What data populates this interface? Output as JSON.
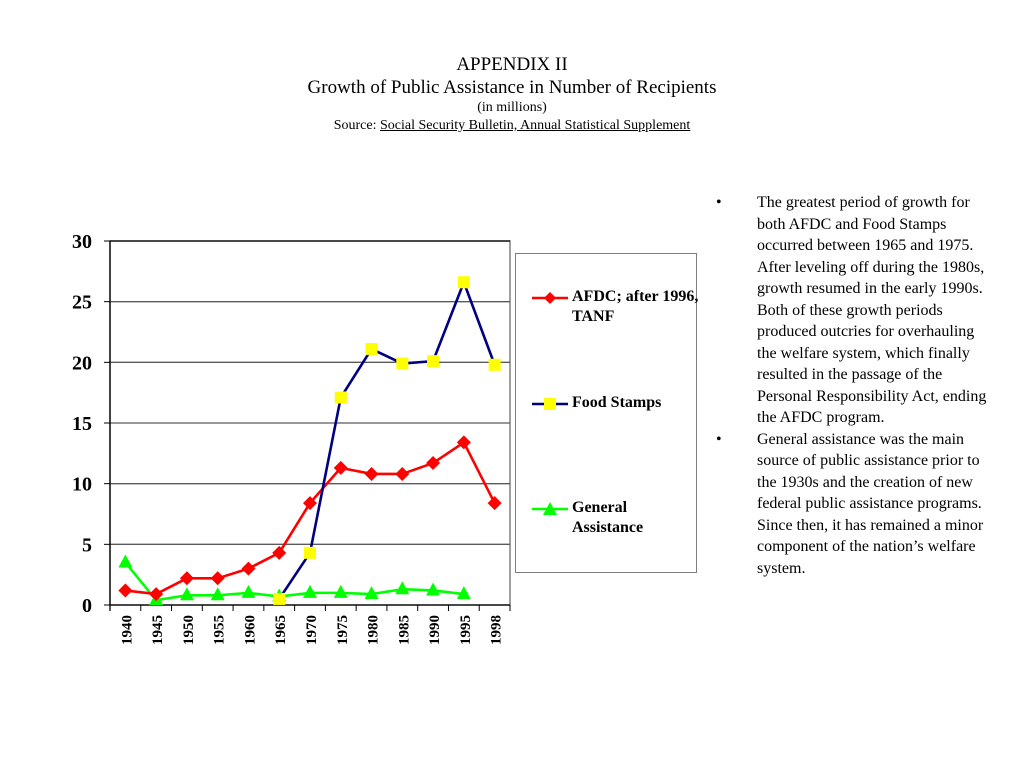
{
  "header": {
    "title": "APPENDIX II",
    "subtitle": "Growth of Public Assistance in Number of Recipients",
    "units": "(in millions)",
    "source_prefix": "Source: ",
    "source_text": "Social Security Bulletin, Annual Statistical Supplement"
  },
  "chart_data": {
    "type": "line",
    "title": "Growth of Public Assistance in Number of Recipients",
    "xlabel": "",
    "ylabel": "",
    "categories": [
      "1940",
      "1945",
      "1950",
      "1955",
      "1960",
      "1965",
      "1970",
      "1975",
      "1980",
      "1985",
      "1990",
      "1995",
      "1998"
    ],
    "ylim": [
      0,
      30
    ],
    "yticks": [
      0,
      5,
      10,
      15,
      20,
      25,
      30
    ],
    "grid": true,
    "legend_position": "right",
    "series": [
      {
        "name": "AFDC; after 1996, TANF",
        "line_color": "#ff0000",
        "marker": "diamond",
        "marker_color": "#ff0000",
        "values": [
          1.2,
          0.9,
          2.2,
          2.2,
          3.0,
          4.3,
          8.4,
          11.3,
          10.8,
          10.8,
          11.7,
          13.4,
          8.4
        ]
      },
      {
        "name": "Food Stamps",
        "line_color": "#000080",
        "marker": "square",
        "marker_color": "#ffff00",
        "values": [
          null,
          null,
          null,
          null,
          null,
          0.5,
          4.3,
          17.1,
          21.1,
          19.9,
          20.1,
          26.6,
          19.8
        ]
      },
      {
        "name": "General Assistance",
        "line_color": "#00ff00",
        "marker": "triangle",
        "marker_color": "#00ff00",
        "values": [
          3.5,
          0.4,
          0.8,
          0.8,
          1.0,
          0.7,
          1.0,
          1.0,
          0.9,
          1.3,
          1.2,
          0.9,
          null
        ]
      }
    ]
  },
  "legend": {
    "items": [
      {
        "label": "AFDC; after 1996, TANF"
      },
      {
        "label": "Food Stamps"
      },
      {
        "label": "General Assistance"
      }
    ]
  },
  "bullets": {
    "marker": "•",
    "items": [
      "The greatest period of growth for both AFDC and Food Stamps occurred between 1965 and 1975. After leveling off during the 1980s, growth resumed in the early 1990s.  Both of these growth periods produced outcries for overhauling the welfare system, which finally resulted in the passage of the Personal Responsibility Act, ending the AFDC program.",
      "General assistance was the main source of public assistance prior to the 1930s and the creation of new federal public assistance programs. Since then, it has remained a minor component of the nation’s welfare system."
    ]
  }
}
